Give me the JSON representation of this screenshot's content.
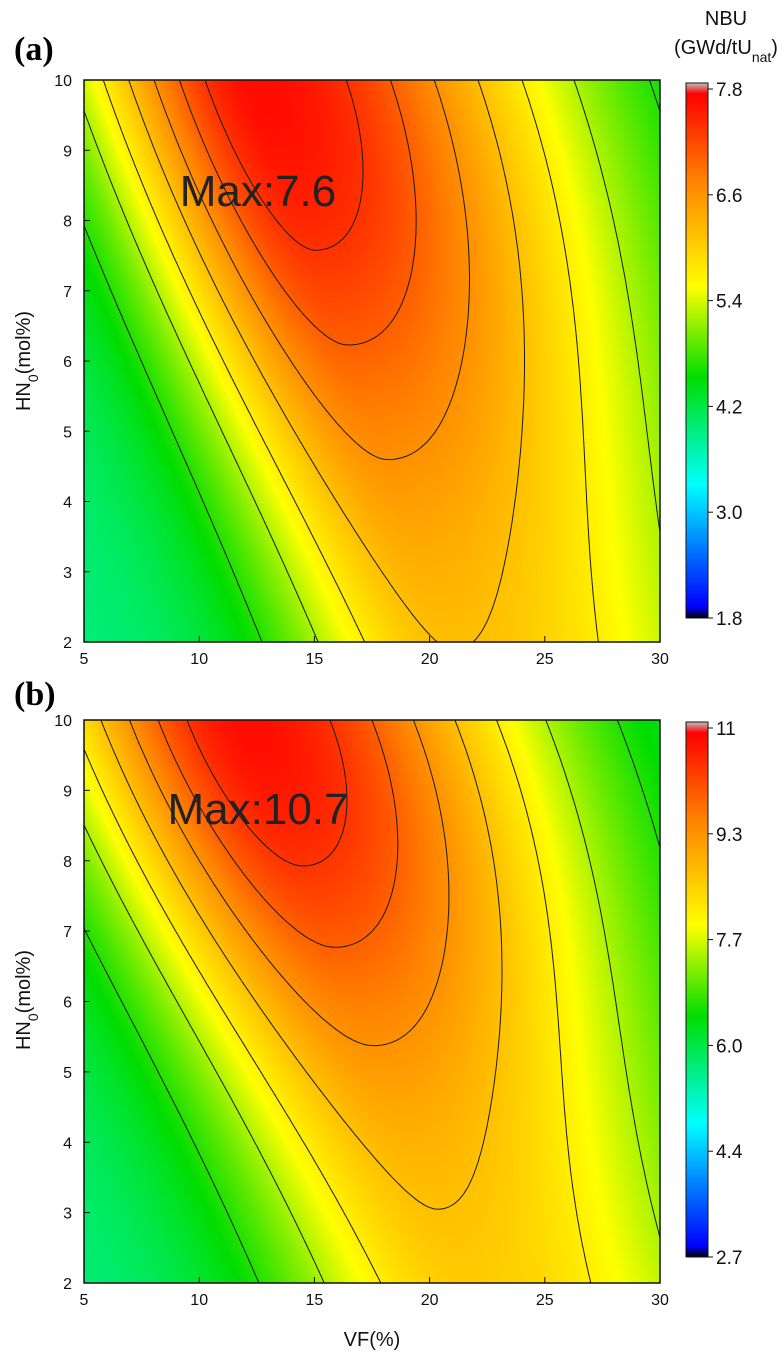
{
  "chart_data": [
    {
      "type": "heatmap",
      "panel_label": "(a)",
      "xlabel": "VF(%)",
      "ylabel": {
        "base": "HN",
        "sub": "0",
        "rest": "(mol%)"
      },
      "xlim": [
        5,
        30
      ],
      "ylim": [
        2,
        10
      ],
      "xticks": [
        "5",
        "10",
        "15",
        "20",
        "25",
        "30"
      ],
      "yticks": [
        "2",
        "3",
        "4",
        "5",
        "6",
        "7",
        "8",
        "9",
        "10"
      ],
      "colorbar": {
        "title_line1": "NBU",
        "title_line2": {
          "base": "(GWd/tU",
          "sub": "nat",
          "rest": ")"
        },
        "ticks": [
          "7.8",
          "6.6",
          "5.4",
          "4.2",
          "3.0",
          "1.8"
        ],
        "range": [
          1.8,
          7.8
        ]
      },
      "max_label": "Max:7.6",
      "max_point": {
        "vf": 12.5,
        "hn": 9.3,
        "value": 7.6
      }
    },
    {
      "type": "heatmap",
      "panel_label": "(b)",
      "xlabel": "VF(%)",
      "ylabel": {
        "base": "HN",
        "sub": "0",
        "rest": "(mol%)"
      },
      "xlim": [
        5,
        30
      ],
      "ylim": [
        2,
        10
      ],
      "xticks": [
        "5",
        "10",
        "15",
        "20",
        "25",
        "30"
      ],
      "yticks": [
        "2",
        "3",
        "4",
        "5",
        "6",
        "7",
        "8",
        "9",
        "10"
      ],
      "colorbar": {
        "ticks": [
          "11",
          "9.3",
          "7.7",
          "6.0",
          "4.4",
          "2.7"
        ],
        "range": [
          2.7,
          11
        ]
      },
      "max_label": "Max:10.7",
      "max_point": {
        "vf": 12.5,
        "hn": 9.3,
        "value": 10.7
      }
    }
  ]
}
